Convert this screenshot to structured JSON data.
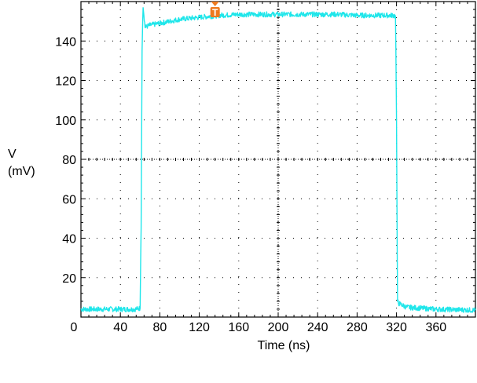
{
  "chart_data": {
    "type": "line",
    "xlabel": "Time (ns)",
    "ylabel_symbol": "V",
    "ylabel_unit": "(mV)",
    "xlim": [
      0,
      400
    ],
    "ylim": [
      0,
      160
    ],
    "x_ticks": [
      0,
      40,
      80,
      120,
      160,
      200,
      240,
      280,
      320,
      360
    ],
    "y_ticks": [
      20,
      40,
      60,
      80,
      100,
      120,
      140
    ],
    "grid": true,
    "trigger_marker": {
      "x": 136,
      "label": "T",
      "color": "#ee7a1f"
    },
    "series": [
      {
        "color": "#1fe6ea",
        "x": [
          0,
          20,
          40,
          50,
          55,
          60,
          61,
          62,
          63,
          65,
          70,
          80,
          100,
          120,
          140,
          160,
          180,
          200,
          220,
          240,
          260,
          280,
          300,
          315,
          318,
          319,
          320,
          321,
          322,
          330,
          360,
          400
        ],
        "y": [
          4,
          4,
          4,
          4,
          4,
          4.5,
          45,
          135,
          158,
          147,
          148,
          149,
          151,
          152,
          153,
          153.5,
          153.5,
          153.5,
          153.5,
          153.5,
          153.5,
          153,
          153,
          153,
          153,
          152,
          100,
          8,
          7,
          5,
          4,
          3.5
        ]
      }
    ]
  }
}
